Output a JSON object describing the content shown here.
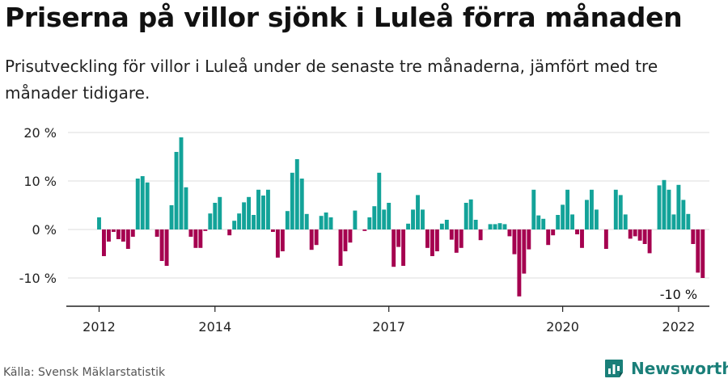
{
  "title": "Priserna på villor sjönk i Luleå förra månaden",
  "subtitle": "Prisutveckling för villor i Luleå under de senaste tre månaderna, jämfört med tre månader tidigare.",
  "source": "Källa: Svensk Mäklarstatistik",
  "brand": {
    "name": "Newsworthy",
    "icon": "newsworthy-logo-icon"
  },
  "colors": {
    "positive": "#13a399",
    "negative": "#a5004f",
    "grid": "#dddddd",
    "brand": "#1a7f79"
  },
  "chart_data": {
    "type": "bar",
    "title": "Priserna på villor sjönk i Luleå förra månaden",
    "xlabel": "",
    "ylabel": "",
    "ylim": [
      -16,
      22
    ],
    "yticks": [
      20,
      10,
      0,
      -10
    ],
    "ytick_labels": [
      "20 %",
      "10 %",
      "0 %",
      "-10 %"
    ],
    "x_start": "2012-01",
    "xticks": [
      {
        "label": "2012",
        "index": 0
      },
      {
        "label": "2014",
        "index": 24
      },
      {
        "label": "2017",
        "index": 60
      },
      {
        "label": "2020",
        "index": 96
      },
      {
        "label": "2022",
        "index": 120
      }
    ],
    "annotation": {
      "text": "-10 %",
      "index": 120
    },
    "values": [
      2.5,
      -5.5,
      -2.5,
      -0.5,
      -2,
      -2.5,
      -4,
      -1.5,
      10.5,
      11,
      9.7,
      0,
      -1.5,
      -6.5,
      -7.5,
      5,
      16,
      19,
      8.7,
      -1.5,
      -3.8,
      -3.8,
      -0.3,
      3.3,
      5.5,
      6.7,
      0,
      -1.2,
      1.8,
      3.3,
      5.6,
      6.7,
      3,
      8.2,
      7,
      8.2,
      -0.5,
      -5.8,
      -4.5,
      3.8,
      11.7,
      14.5,
      10.5,
      3.2,
      -4.2,
      -3.2,
      2.8,
      3.5,
      2.5,
      0,
      -7.5,
      -4.5,
      -2.7,
      3.9,
      0,
      -0.3,
      2.5,
      4.8,
      11.7,
      4.1,
      5.5,
      -7.7,
      -3.6,
      -7.5,
      1.2,
      4.1,
      7.1,
      4.1,
      -3.8,
      -5.5,
      -4.5,
      1.2,
      2,
      -2.1,
      -4.8,
      -3.8,
      5.5,
      6.2,
      2,
      -2.2,
      0,
      1.1,
      1.1,
      1.3,
      1.1,
      -1.4,
      -5.1,
      -13.8,
      -9.1,
      -4.1,
      8.2,
      2.9,
      2.2,
      -3.2,
      -1.2,
      3,
      5.1,
      8.2,
      3.1,
      -1,
      -3.8,
      6.1,
      8.2,
      4.1,
      0,
      -4,
      0,
      8.2,
      7.1,
      3.1,
      -1.9,
      -1.4,
      -2.3,
      -3,
      -4.9,
      0,
      9.1,
      10.2,
      8.2,
      3.1,
      9.2,
      6.1,
      3.2,
      -3,
      -8.9,
      -10
    ]
  }
}
